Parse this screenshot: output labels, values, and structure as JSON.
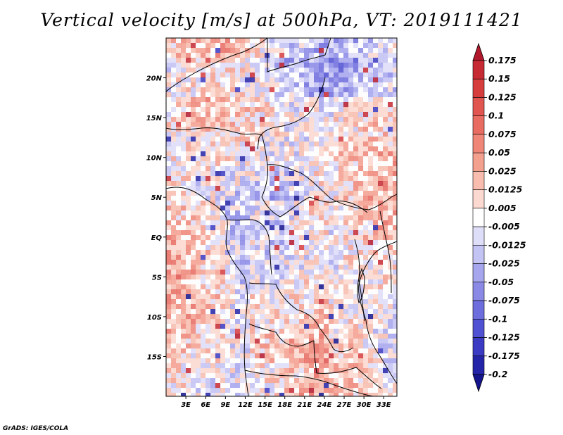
{
  "title": "Vertical velocity [m/s] at 500hPa, VT: 2019111421",
  "credit": "GrADS: IGES/COLA",
  "map": {
    "lon_range": [
      0,
      35
    ],
    "lat_range": [
      -20,
      25
    ],
    "lat_ticks": [
      {
        "lat": 20,
        "label": "20N"
      },
      {
        "lat": 15,
        "label": "15N"
      },
      {
        "lat": 10,
        "label": "10N"
      },
      {
        "lat": 5,
        "label": "5N"
      },
      {
        "lat": 0,
        "label": "EQ"
      },
      {
        "lat": -5,
        "label": "5S"
      },
      {
        "lat": -10,
        "label": "10S"
      },
      {
        "lat": -15,
        "label": "15S"
      }
    ],
    "lon_ticks": [
      {
        "lon": 3,
        "label": "3E"
      },
      {
        "lon": 6,
        "label": "6E"
      },
      {
        "lon": 9,
        "label": "9E"
      },
      {
        "lon": 12,
        "label": "12E"
      },
      {
        "lon": 15,
        "label": "15E"
      },
      {
        "lon": 18,
        "label": "18E"
      },
      {
        "lon": 21,
        "label": "21E"
      },
      {
        "lon": 24,
        "label": "24E"
      },
      {
        "lon": 27,
        "label": "27E"
      },
      {
        "lon": 30,
        "label": "30E"
      },
      {
        "lon": 33,
        "label": "33E"
      }
    ]
  },
  "colorbar": {
    "labels": [
      "0.175",
      "0.15",
      "0.125",
      "0.1",
      "0.075",
      "0.05",
      "0.025",
      "0.0125",
      "0.005",
      "-0.005",
      "-0.0125",
      "-0.025",
      "-0.05",
      "-0.075",
      "-0.1",
      "-0.125",
      "-0.175",
      "-0.2"
    ],
    "colors": [
      "#b2182b",
      "#c62a33",
      "#d63e3e",
      "#e0554f",
      "#e86c62",
      "#ef8678",
      "#f4a08f",
      "#f8bdae",
      "#fbd9d0",
      "#ffffff",
      "#dedef9",
      "#c3c3f4",
      "#a6a6ee",
      "#8a8ae6",
      "#6d6dde",
      "#5050d2",
      "#3a3ac2",
      "#2424a8",
      "#14148c"
    ]
  }
}
